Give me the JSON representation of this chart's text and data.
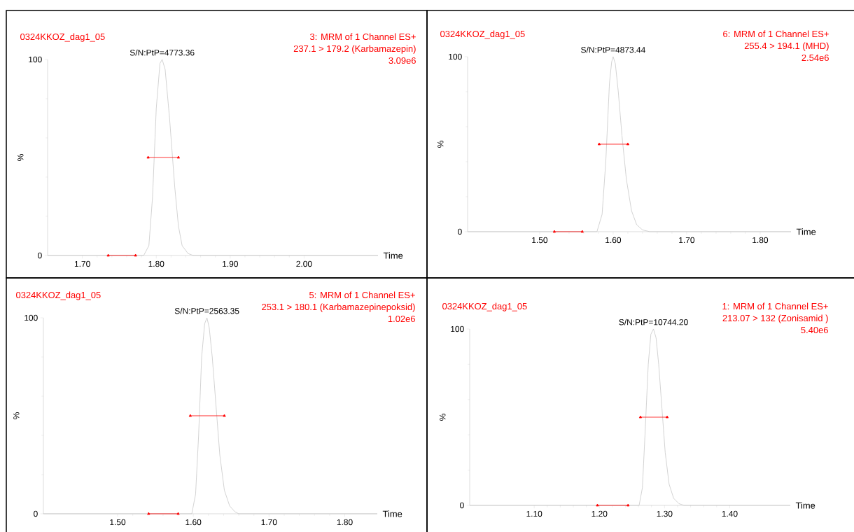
{
  "chart_data": [
    {
      "type": "line",
      "title": "0324KKOZ_dag1_05",
      "subtitle": "3: MRM of 1 Channel ES+",
      "xlabel": "Time",
      "ylabel": "%",
      "annotations": [
        "237.1 > 179.2 (Karbamazepin)",
        "3.09e6",
        {
          "text": "S/N:PtP=4773.36",
          "x": 1.808,
          "y": 100
        }
      ],
      "xlim": [
        1.653,
        2.1
      ],
      "ylim": [
        0,
        100
      ],
      "xticks": [
        {
          "value": 1.7,
          "label": "1.70"
        },
        {
          "value": 1.8,
          "label": "1.80"
        },
        {
          "value": 1.9,
          "label": "1.90"
        },
        {
          "value": 2.0,
          "label": "2.00"
        }
      ],
      "yticks": [
        0,
        100
      ],
      "series": [
        {
          "color": "#c8c8c8",
          "x": [
            1.653,
            1.783,
            1.79,
            1.795,
            1.8,
            1.805,
            1.808,
            1.812,
            1.818,
            1.825,
            1.83,
            1.835,
            1.843,
            1.85,
            2.1
          ],
          "values": [
            0,
            0,
            5,
            30,
            75,
            98,
            100,
            95,
            70,
            35,
            15,
            5,
            1,
            0,
            0
          ]
        },
        {
          "color": "#ff0000",
          "marker": "triangle",
          "x": [
            1.789,
            1.83
          ],
          "values": [
            50,
            50
          ]
        },
        {
          "color": "#ff0000",
          "marker": "triangle",
          "x": [
            1.735,
            1.772
          ],
          "values": [
            0,
            0
          ]
        }
      ]
    },
    {
      "type": "line",
      "title": "0324KKOZ_dag1_05",
      "subtitle": "6: MRM of 1 Channel ES+",
      "xlabel": "Time",
      "ylabel": "%",
      "annotations": [
        "255.4 > 194.1 (MHD)",
        "2.54e6",
        {
          "text": "S/N:PtP=4873.44",
          "x": 1.6,
          "y": 100
        }
      ],
      "xlim": [
        1.402,
        1.842
      ],
      "ylim": [
        0,
        100
      ],
      "xticks": [
        {
          "value": 1.5,
          "label": "1.50"
        },
        {
          "value": 1.6,
          "label": "1.60"
        },
        {
          "value": 1.7,
          "label": "1.70"
        },
        {
          "value": 1.8,
          "label": "1.80"
        }
      ],
      "yticks": [
        0,
        100
      ],
      "series": [
        {
          "color": "#c8c8c8",
          "x": [
            1.402,
            1.578,
            1.585,
            1.59,
            1.595,
            1.598,
            1.6,
            1.603,
            1.607,
            1.612,
            1.618,
            1.625,
            1.632,
            1.64,
            1.65,
            1.842
          ],
          "values": [
            0,
            0,
            10,
            40,
            85,
            97,
            100,
            96,
            80,
            55,
            30,
            12,
            4,
            1,
            0,
            0
          ]
        },
        {
          "color": "#ff0000",
          "marker": "triangle",
          "x": [
            1.581,
            1.62
          ],
          "values": [
            50,
            50
          ]
        },
        {
          "color": "#ff0000",
          "marker": "triangle",
          "x": [
            1.52,
            1.558
          ],
          "values": [
            0,
            0
          ]
        }
      ]
    },
    {
      "type": "line",
      "title": "0324KKOZ_dag1_05",
      "subtitle": "5: MRM of 1 Channel ES+",
      "xlabel": "Time",
      "ylabel": "%",
      "annotations": [
        "253.1 > 180.1 (Karbamazepinepoksid)",
        "1.02e6",
        {
          "text": "S/N:PtP=2563.35",
          "x": 1.618,
          "y": 100
        }
      ],
      "xlim": [
        1.402,
        1.843
      ],
      "ylim": [
        0,
        100
      ],
      "xticks": [
        {
          "value": 1.5,
          "label": "1.50"
        },
        {
          "value": 1.6,
          "label": "1.60"
        },
        {
          "value": 1.7,
          "label": "1.70"
        },
        {
          "value": 1.8,
          "label": "1.80"
        }
      ],
      "yticks": [
        0,
        100
      ],
      "series": [
        {
          "color": "#c8c8c8",
          "x": [
            1.402,
            1.598,
            1.603,
            1.607,
            1.611,
            1.615,
            1.618,
            1.621,
            1.625,
            1.63,
            1.635,
            1.641,
            1.648,
            1.655,
            1.66,
            1.843
          ],
          "values": [
            0,
            0,
            10,
            40,
            80,
            97,
            100,
            95,
            80,
            55,
            30,
            12,
            4,
            1,
            0,
            0
          ]
        },
        {
          "color": "#ff0000",
          "marker": "triangle",
          "x": [
            1.596,
            1.641
          ],
          "values": [
            50,
            50
          ]
        },
        {
          "color": "#ff0000",
          "marker": "triangle",
          "x": [
            1.541,
            1.58
          ],
          "values": [
            0,
            0
          ]
        }
      ]
    },
    {
      "type": "line",
      "title": "0324KKOZ_dag1_05",
      "subtitle": "1: MRM of 1 Channel ES+",
      "xlabel": "Time",
      "ylabel": "%",
      "annotations": [
        "213.07 > 132 (Zonisamid )",
        "5.40e6",
        {
          "text": "S/N:PtP=10744.20",
          "x": 1.283,
          "y": 100
        }
      ],
      "xlim": [
        1.001,
        1.493
      ],
      "ylim": [
        0,
        100
      ],
      "xticks": [
        {
          "value": 1.1,
          "label": "1.10"
        },
        {
          "value": 1.2,
          "label": "1.20"
        },
        {
          "value": 1.3,
          "label": "1.30"
        },
        {
          "value": 1.4,
          "label": "1.40"
        }
      ],
      "yticks": [
        0,
        100
      ],
      "series": [
        {
          "color": "#c8c8c8",
          "x": [
            1.001,
            1.261,
            1.266,
            1.27,
            1.275,
            1.279,
            1.283,
            1.287,
            1.291,
            1.296,
            1.301,
            1.307,
            1.314,
            1.322,
            1.33,
            1.493
          ],
          "values": [
            0,
            0,
            10,
            40,
            80,
            97,
            100,
            95,
            80,
            55,
            30,
            12,
            4,
            1,
            0,
            0
          ]
        },
        {
          "color": "#ff0000",
          "marker": "triangle",
          "x": [
            1.263,
            1.304
          ],
          "values": [
            50,
            50
          ]
        },
        {
          "color": "#ff0000",
          "marker": "triangle",
          "x": [
            1.197,
            1.244
          ],
          "values": [
            0,
            0
          ]
        }
      ]
    }
  ]
}
